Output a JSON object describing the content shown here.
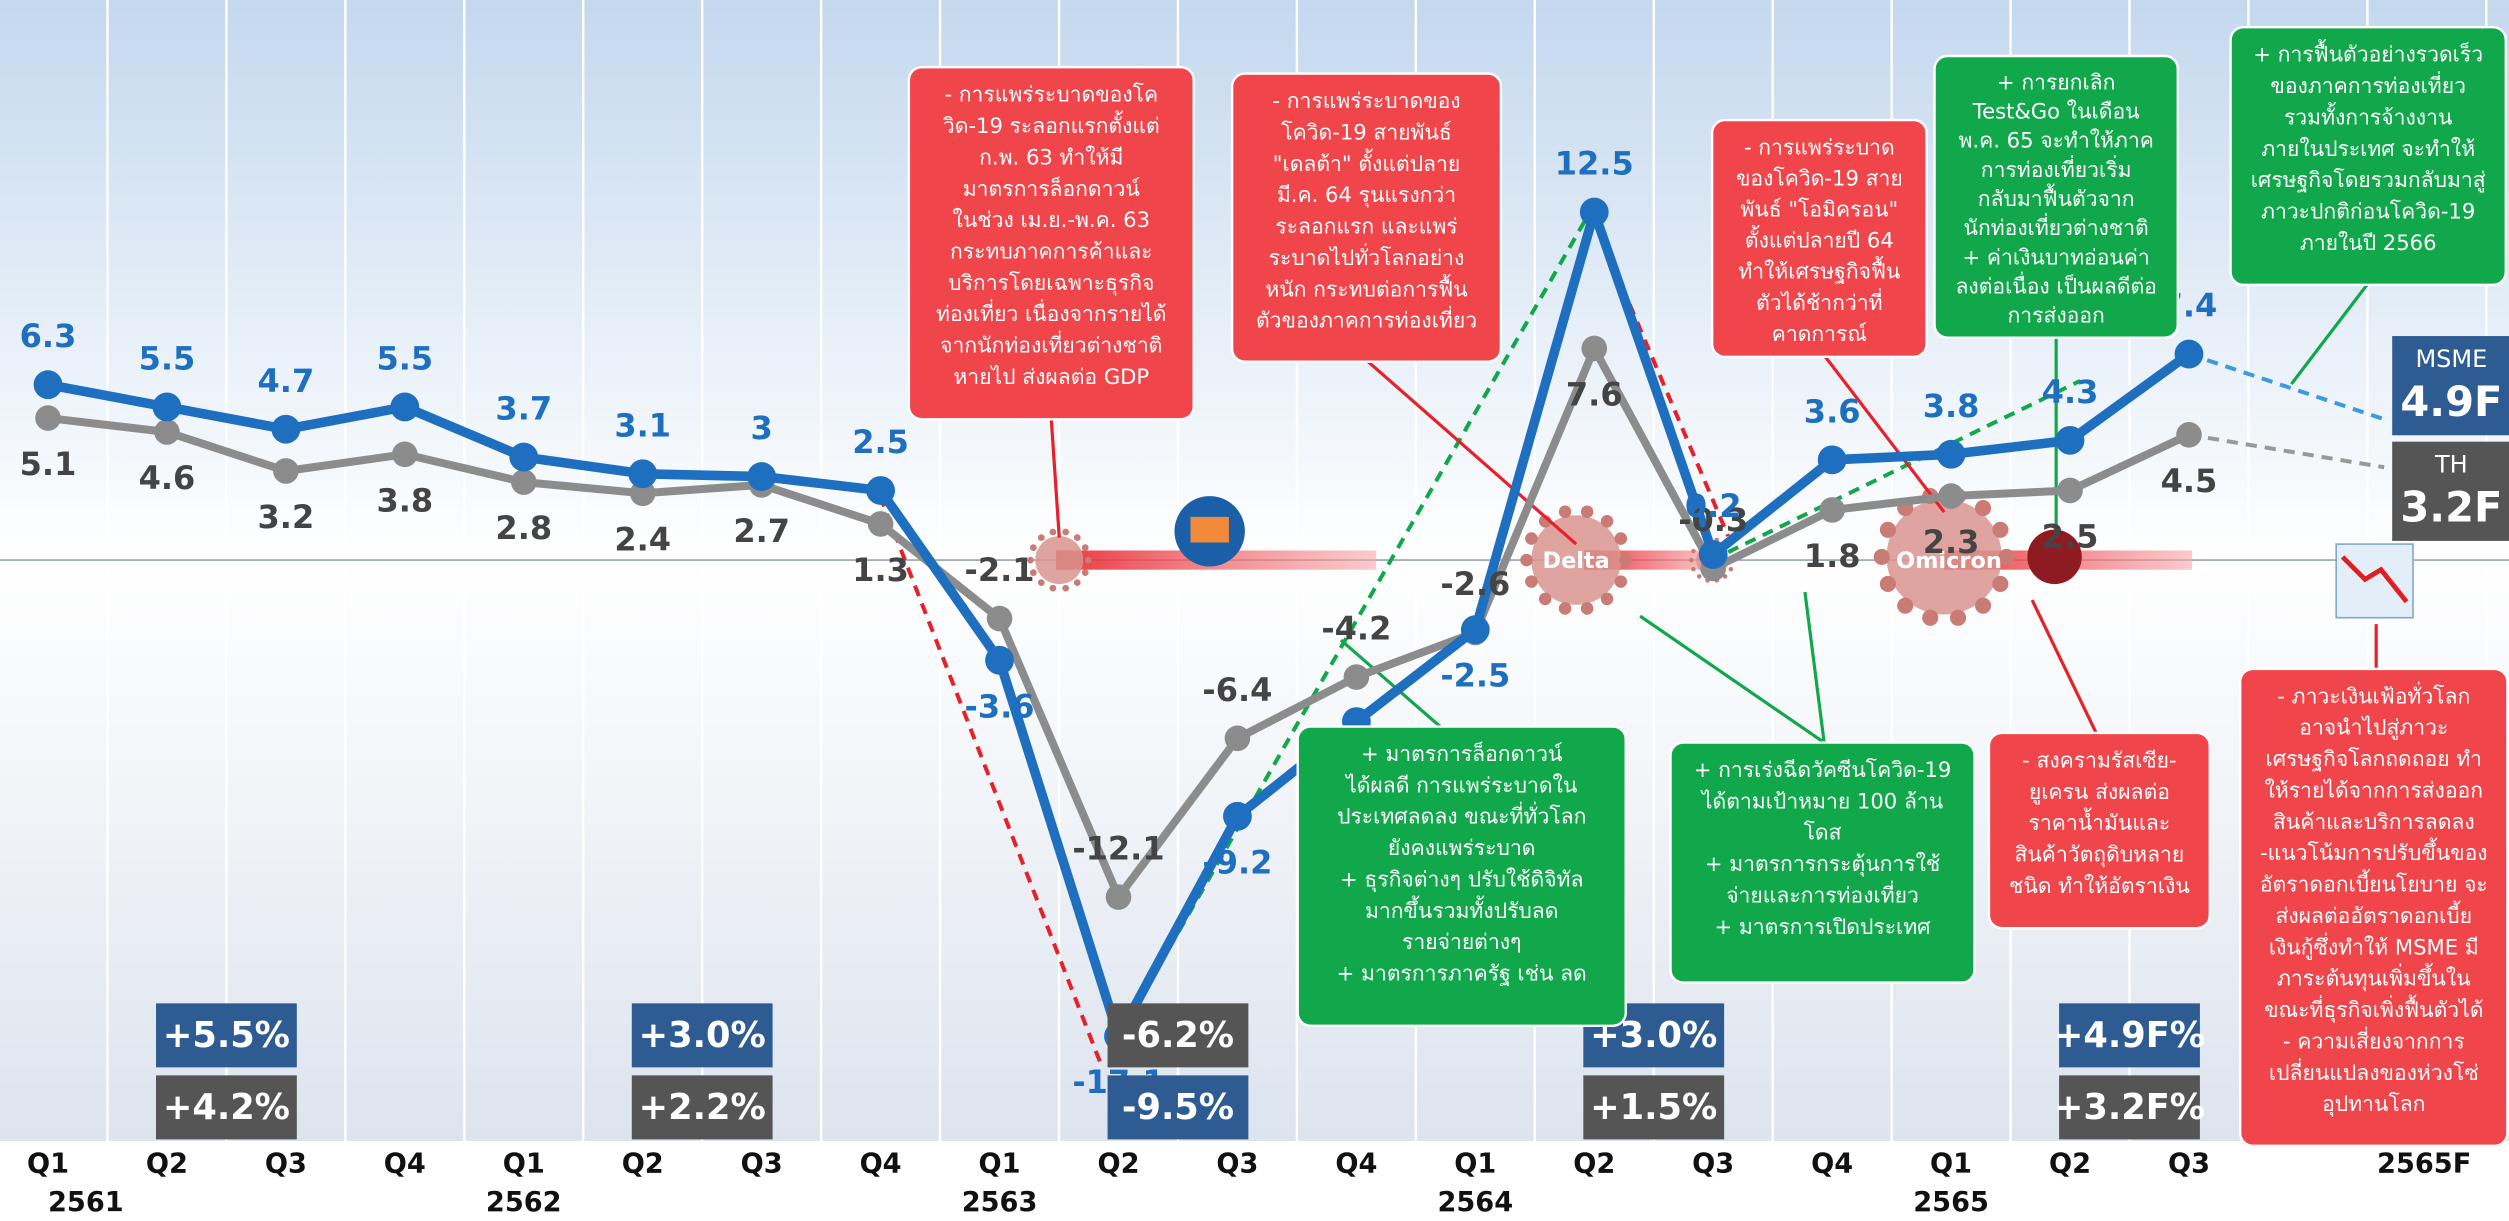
{
  "chart_data": {
    "type": "line",
    "categories": [
      "Q1",
      "Q2",
      "Q3",
      "Q4",
      "Q1",
      "Q2",
      "Q3",
      "Q4",
      "Q1",
      "Q2",
      "Q3",
      "Q4",
      "Q1",
      "Q2",
      "Q3",
      "Q4",
      "Q1",
      "Q2",
      "Q3"
    ],
    "year_labels": [
      "2561",
      null,
      null,
      null,
      "2562",
      null,
      null,
      null,
      "2563",
      null,
      null,
      null,
      "2564",
      null,
      null,
      null,
      "2565",
      null,
      null
    ],
    "forecast_category": "2565F",
    "ylim": [
      -20,
      20
    ],
    "series": [
      {
        "name": "MSME",
        "color": "#1f6fc0",
        "forecast_label": "4.9F",
        "values": [
          6.3,
          5.5,
          4.7,
          5.5,
          3.7,
          3.1,
          3.0,
          2.5,
          -3.6,
          -17.1,
          -9.2,
          -5.8,
          -2.5,
          12.5,
          0.2,
          3.6,
          3.8,
          4.3,
          7.4
        ]
      },
      {
        "name": "TH",
        "color": "#8c8c8c",
        "forecast_label": "3.2F",
        "values": [
          5.1,
          4.6,
          3.2,
          3.8,
          2.8,
          2.4,
          2.7,
          1.3,
          -2.1,
          -12.1,
          -6.4,
          -4.2,
          -2.6,
          7.6,
          -0.3,
          1.8,
          2.3,
          2.5,
          4.5
        ]
      }
    ],
    "annual_growth": [
      [
        {
          "text": "+5.5%",
          "color": "#2e5c92"
        },
        {
          "text": "+4.2%",
          "color": "#555555"
        }
      ],
      [
        {
          "text": "+3.0%",
          "color": "#2e5c92"
        },
        {
          "text": "+2.2%",
          "color": "#555555"
        }
      ],
      [
        {
          "text": "-6.2%",
          "color": "#555555"
        },
        {
          "text": "-9.5%",
          "color": "#2e5c92"
        }
      ],
      [
        {
          "text": "+3.0%",
          "color": "#2e5c92"
        },
        {
          "text": "+1.5%",
          "color": "#555555"
        }
      ],
      [
        {
          "text": "+4.9F%",
          "color": "#2e5c92"
        },
        {
          "text": "+3.2F%",
          "color": "#555555"
        }
      ]
    ],
    "icon_labels": [
      "Delta",
      "Omicron"
    ],
    "annotations": [
      {
        "color": "#f0464b",
        "lines": [
          "- การแพร่ระบาดของโค",
          "วิด-19 ระลอกแรกตั้งแต่",
          "ก.พ. 63 ทำให้มี",
          "มาตรการล็อกดาวน์",
          "ในช่วง เม.ย.-พ.ค. 63",
          "กระทบภาคการค้าและ",
          "บริการโดยเฉพาะธุรกิจ",
          "ท่องเที่ยว เนื่องจากรายได้",
          "จากนักท่องเที่ยวต่างชาติ",
          "หายไป ส่งผลต่อ GDP"
        ]
      },
      {
        "color": "#f0464b",
        "lines": [
          "- การแพร่ระบาดของ",
          "โควิด-19 สายพันธ์",
          "\"เดลต้า\" ตั้งแต่ปลาย",
          "มี.ค. 64 รุนแรงกว่า",
          "ระลอกแรก และแพร่",
          "ระบาดไปทั่วโลกอย่าง",
          "หนัก กระทบต่อการฟื้น",
          "ตัวของภาคการท่องเที่ยว"
        ]
      },
      {
        "color": "#f0464b",
        "lines": [
          "- การแพร่ระบาด",
          "ของโควิด-19 สาย",
          "พันธ์ \"โอมิครอน\"",
          "ตั้งแต่ปลายปี 64",
          "ทำให้เศรษฐกิจฟื้น",
          "ตัวได้ช้ากว่าที่",
          "คาดการณ์"
        ]
      },
      {
        "color": "#10a84a",
        "lines": [
          "+ การยกเลิก",
          "Test&Go ในเดือน",
          "พ.ค. 65 จะทำให้ภาค",
          "การท่องเที่ยวเริ่ม",
          "กลับมาฟื้นตัวจาก",
          "นักท่องเที่ยวต่างชาติ",
          "+ ค่าเงินบาทอ่อนค่า",
          "ลงต่อเนื่อง เป็นผลดีต่อ",
          "การส่งออก"
        ]
      },
      {
        "color": "#10a84a",
        "lines": [
          "+ การฟื้นตัวอย่างรวดเร็ว",
          "ของภาคการท่องเที่ยว",
          "รวมทั้งการจ้างงาน",
          "ภายในประเทศ จะทำให้",
          "เศรษฐกิจโดยรวมกลับมาสู่",
          "ภาวะปกติก่อนโควิด-19",
          "ภายในปี 2566"
        ]
      },
      {
        "color": "#10a84a",
        "lines": [
          "+ มาตรการล็อกดาวน์",
          "ได้ผลดี การแพร่ระบาดใน",
          "ประเทศลดลง ขณะที่ทั่วโลก",
          "ยังคงแพร่ระบาด",
          "+ ธุรกิจต่างๆ ปรับใช้ดิจิทัล",
          "มากขึ้นรวมทั้งปรับลด",
          "รายจ่ายต่างๆ",
          "+ มาตรการภาครัฐ เช่น ลด"
        ]
      },
      {
        "color": "#10a84a",
        "lines": [
          "+ การเร่งฉีดวัคซีนโควิด-19",
          "ได้ตามเป้าหมาย 100 ล้าน",
          "โดส",
          "+ มาตรการกระตุ้นการใช้",
          "จ่ายและการท่องเที่ยว",
          "+ มาตรการเปิดประเทศ"
        ]
      },
      {
        "color": "#f0464b",
        "lines": [
          "- สงครามรัสเซีย-",
          "ยูเครน ส่งผลต่อ",
          "ราคาน้ำมันและ",
          "สินค้าวัตถุดิบหลาย",
          "ชนิด ทำให้อัตราเงิน"
        ]
      },
      {
        "color": "#f0464b",
        "lines": [
          "- ภาวะเงินเฟ้อทั่วโลก",
          "อาจนำไปสู่ภาวะ",
          "เศรษฐกิจโลกถดถอย ทำ",
          "ให้รายได้จากการส่งออก",
          "สินค้าและบริการลดลง",
          "-แนวโน้มการปรับขึ้นของ",
          "อัตราดอกเบี้ยนโยบาย จะ",
          "ส่งผลต่ออัตราดอกเบี้ย",
          "เงินกู้ซึ่งทำให้ MSME มี",
          "ภาระต้นทุนเพิ่มขึ้นใน",
          "ขณะที่ธุรกิจเพิ่งฟื้นตัวได้",
          "- ความเสี่ยงจากการ",
          "เปลี่ยนแปลงของห่วงโซ่",
          "อุปทานโลก"
        ]
      }
    ]
  }
}
